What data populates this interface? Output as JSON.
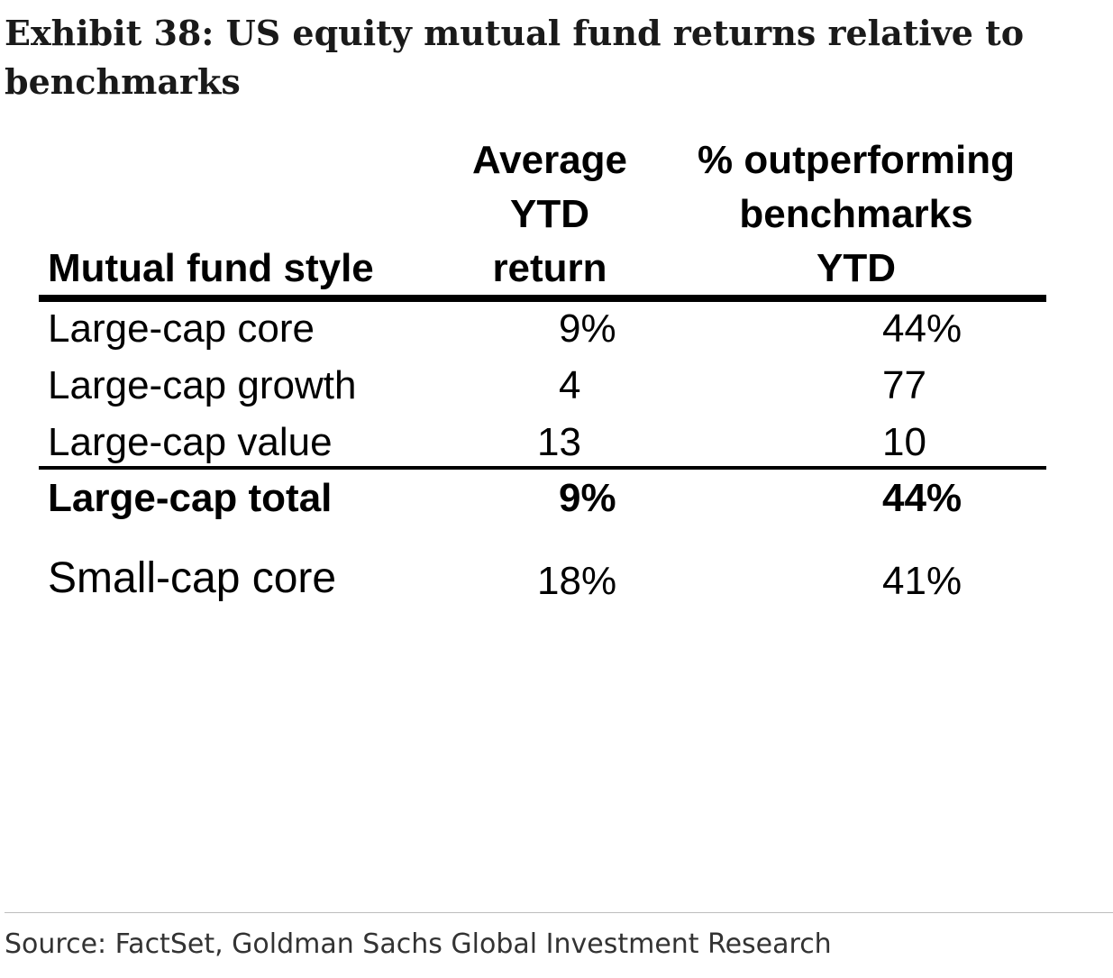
{
  "title": "Exhibit 38: US equity mutual fund returns relative to benchmarks",
  "source": "Source: FactSet, Goldman Sachs Global Investment Research",
  "chart_data": {
    "type": "table",
    "columns": [
      "Mutual fund style",
      "Average YTD return",
      "% outperforming benchmarks YTD"
    ],
    "header_lines": {
      "style": [
        "Mutual fund style"
      ],
      "avg": [
        "Average",
        "YTD",
        "return"
      ],
      "pct": [
        "% outperforming",
        "benchmarks",
        "YTD"
      ]
    },
    "rows": [
      {
        "style": "Large-cap core",
        "avg": "9%",
        "pct": "44%"
      },
      {
        "style": "Large-cap growth",
        "avg": "4",
        "pct": "77"
      },
      {
        "style": "Large-cap value",
        "avg": "13",
        "pct": "10"
      },
      {
        "style": "Large-cap total",
        "avg": "9%",
        "pct": "44%"
      },
      {
        "style": "Small-cap core",
        "avg": "18%",
        "pct": "41%"
      }
    ]
  }
}
